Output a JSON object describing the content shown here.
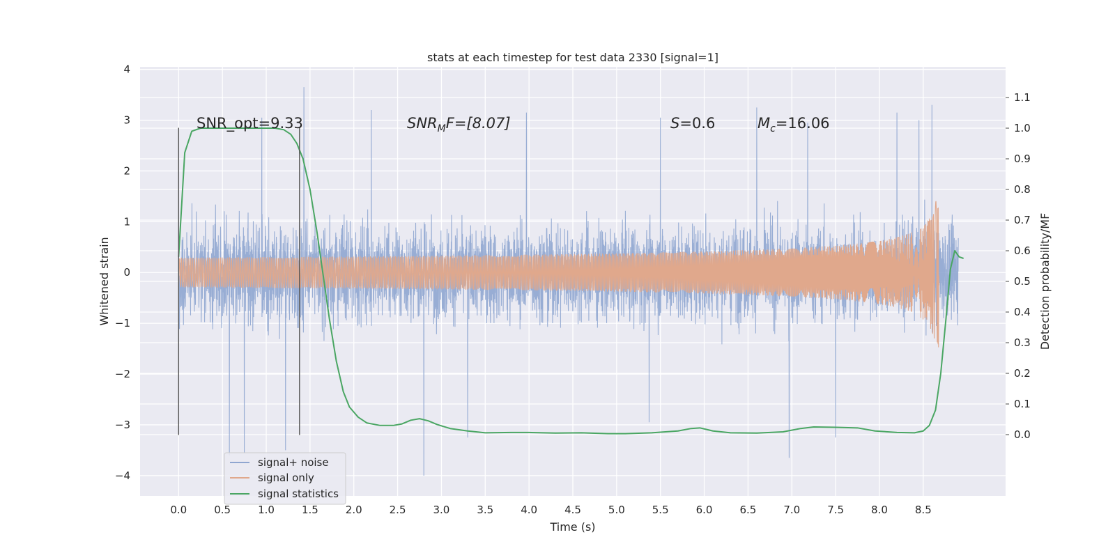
{
  "chart_data": {
    "type": "line",
    "title": "stats at each timestep for test data 2330 [signal=1]",
    "xlabel": "Time (s)",
    "ylabel_left": "Whitened strain",
    "ylabel_right": "Detection probability/MF",
    "xlim": [
      -0.44,
      9.44
    ],
    "ylim_left": [
      -4.4,
      4.05
    ],
    "ylim_right": [
      -0.2,
      1.2
    ],
    "xticks": [
      "0.0",
      "0.5",
      "1.0",
      "1.5",
      "2.0",
      "2.5",
      "3.0",
      "3.5",
      "4.0",
      "4.5",
      "5.0",
      "5.5",
      "6.0",
      "6.5",
      "7.0",
      "7.5",
      "8.0",
      "8.5"
    ],
    "yticks_left": [
      "4",
      "3",
      "2",
      "1",
      "0",
      "−1",
      "−2",
      "−3",
      "−4"
    ],
    "yticks_right": [
      "1.1",
      "1.0",
      "0.9",
      "0.8",
      "0.7",
      "0.6",
      "0.5",
      "0.4",
      "0.3",
      "0.2",
      "0.1",
      "0.0"
    ],
    "grid": true,
    "legend_location": "lower-left",
    "colors": {
      "noise": "#8fa6d0",
      "signal": "#e0a88c",
      "stats": "#4aa663",
      "vline": "#555555",
      "background": "#eaeaf2",
      "grid": "#ffffff"
    },
    "annotations": {
      "snr_opt": "SNR_opt=9.33",
      "snr_mf_label": "SNR",
      "snr_mf_sub": "M",
      "snr_mf_rest": "F=[8.07]",
      "s_label": "S",
      "s_rest": "=0.6",
      "mc_label": "M",
      "mc_sub": "c",
      "mc_rest": "=16.06"
    },
    "vertical_lines_x": [
      0.0,
      1.38
    ],
    "series": [
      {
        "name": "signal+ noise",
        "kind": "noise",
        "x_range": [
          0.0,
          8.9
        ],
        "typical_amplitude": 1.4,
        "peaks": [
          {
            "x": 1.43,
            "y": 3.65
          },
          {
            "x": 2.8,
            "y": -4.0
          },
          {
            "x": 0.58,
            "y": -3.6
          },
          {
            "x": 0.75,
            "y": -3.55
          },
          {
            "x": 6.97,
            "y": -3.65
          },
          {
            "x": 3.3,
            "y": -3.25
          },
          {
            "x": 7.5,
            "y": -3.25
          },
          {
            "x": 5.37,
            "y": -2.95
          },
          {
            "x": 8.2,
            "y": 3.15
          },
          {
            "x": 2.2,
            "y": 3.2
          },
          {
            "x": 3.97,
            "y": 3.15
          },
          {
            "x": 5.5,
            "y": 3.05
          },
          {
            "x": 6.6,
            "y": 3.25
          },
          {
            "x": 7.18,
            "y": 2.95
          },
          {
            "x": 8.45,
            "y": 3.0
          },
          {
            "x": 8.6,
            "y": 3.3
          },
          {
            "x": 0.95,
            "y": 3.05
          },
          {
            "x": 1.22,
            "y": -3.5
          }
        ]
      },
      {
        "name": "signal only",
        "kind": "chirp",
        "x_range": [
          0.0,
          8.68
        ],
        "merger_time": 8.68,
        "peak_amplitude": 1.55
      },
      {
        "name": "signal statistics",
        "kind": "statistic",
        "axis": "right",
        "x": [
          0.0,
          0.07,
          0.15,
          0.25,
          0.4,
          0.6,
          0.8,
          1.0,
          1.1,
          1.2,
          1.28,
          1.35,
          1.42,
          1.5,
          1.58,
          1.65,
          1.72,
          1.8,
          1.88,
          1.95,
          2.05,
          2.15,
          2.3,
          2.45,
          2.55,
          2.65,
          2.75,
          2.85,
          2.95,
          3.1,
          3.3,
          3.5,
          3.8,
          4.0,
          4.3,
          4.6,
          4.9,
          5.1,
          5.4,
          5.7,
          5.85,
          5.95,
          6.1,
          6.3,
          6.6,
          6.9,
          7.1,
          7.25,
          7.5,
          7.75,
          7.95,
          8.2,
          8.4,
          8.5,
          8.57,
          8.64,
          8.7,
          8.76,
          8.81,
          8.86,
          8.91,
          8.96
        ],
        "values": [
          0.58,
          0.92,
          0.99,
          1.0,
          1.0,
          1.0,
          1.0,
          1.0,
          1.0,
          0.995,
          0.98,
          0.95,
          0.9,
          0.8,
          0.66,
          0.52,
          0.38,
          0.24,
          0.14,
          0.09,
          0.057,
          0.038,
          0.03,
          0.03,
          0.035,
          0.047,
          0.052,
          0.045,
          0.033,
          0.02,
          0.012,
          0.006,
          0.007,
          0.007,
          0.005,
          0.006,
          0.003,
          0.003,
          0.006,
          0.012,
          0.02,
          0.022,
          0.012,
          0.006,
          0.005,
          0.009,
          0.02,
          0.025,
          0.024,
          0.022,
          0.012,
          0.007,
          0.006,
          0.012,
          0.03,
          0.08,
          0.2,
          0.38,
          0.54,
          0.6,
          0.58,
          0.575
        ]
      }
    ]
  }
}
